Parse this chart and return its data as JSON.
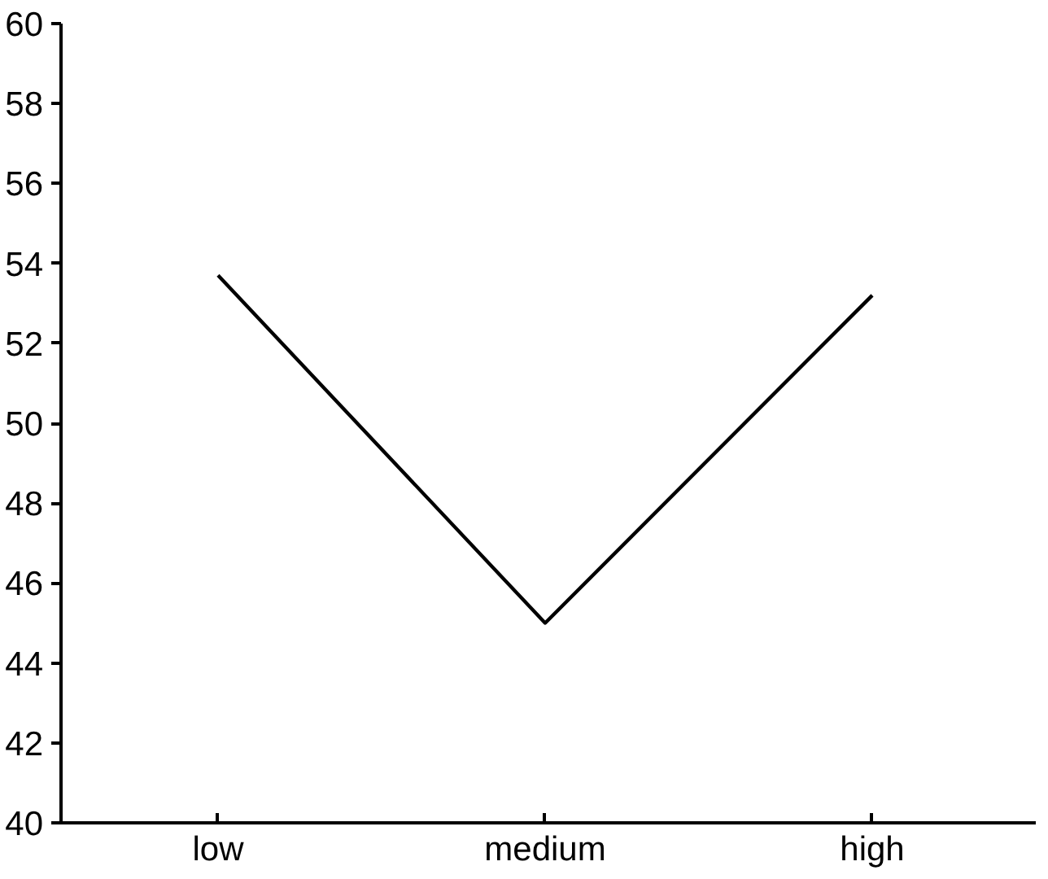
{
  "chart_data": {
    "type": "line",
    "categories": [
      "low",
      "medium",
      "high"
    ],
    "series": [
      {
        "color": "#000000",
        "values": [
          53.7,
          45.0,
          53.2
        ]
      }
    ],
    "ylim": [
      40,
      60
    ],
    "yticks": [
      40,
      42,
      44,
      46,
      48,
      50,
      52,
      54,
      56,
      58,
      60
    ],
    "grid": false,
    "marker": "none",
    "line_style": "solid"
  }
}
